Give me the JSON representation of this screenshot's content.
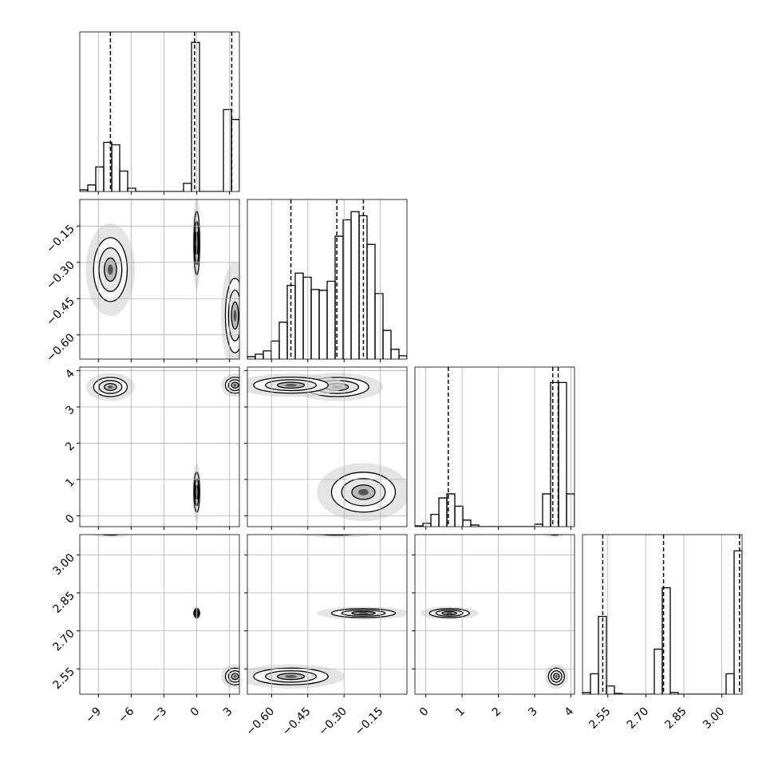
{
  "chart_data": {
    "type": "corner",
    "color": "#000000",
    "grid": true,
    "params": [
      {
        "lim": [
          -10.7,
          3.9
        ],
        "ticks": [
          {
            "value": -9,
            "label": "−9"
          },
          {
            "value": -6,
            "label": "−6"
          },
          {
            "value": -3,
            "label": "−3"
          },
          0,
          3
        ],
        "quantiles": [
          -7.9,
          -0.2,
          3.2
        ],
        "ylim": [
          0,
          190
        ],
        "bins": [
          -10.7,
          -9.97,
          -9.24,
          -8.51,
          -7.78,
          -7.05,
          -6.32,
          -5.59,
          -4.86,
          -4.13,
          -3.4,
          -2.67,
          -1.94,
          -1.21,
          -0.48,
          0.25,
          0.98,
          1.71,
          2.44,
          3.17,
          3.9
        ],
        "counts": [
          2,
          8,
          30,
          60,
          57,
          25,
          4,
          0,
          0,
          0,
          0,
          0,
          0,
          10,
          182,
          0,
          0,
          0,
          100,
          88
        ]
      },
      {
        "lim": [
          -0.7,
          -0.04
        ],
        "ticks": [
          {
            "value": -0.6,
            "label": "−0.60"
          },
          {
            "value": -0.45,
            "label": "−0.45"
          },
          {
            "value": -0.3,
            "label": "−0.30"
          },
          {
            "value": -0.15,
            "label": "−0.15"
          }
        ],
        "quantiles": [
          -0.52,
          -0.33,
          -0.22
        ],
        "ylim": [
          0,
          190
        ],
        "bins": [
          -0.7,
          -0.667,
          -0.634,
          -0.601,
          -0.568,
          -0.535,
          -0.502,
          -0.469,
          -0.436,
          -0.403,
          -0.37,
          -0.337,
          -0.304,
          -0.271,
          -0.238,
          -0.205,
          -0.172,
          -0.139,
          -0.106,
          -0.073,
          -0.04
        ],
        "counts": [
          3,
          6,
          10,
          22,
          45,
          90,
          105,
          100,
          85,
          84,
          95,
          150,
          170,
          180,
          175,
          140,
          80,
          35,
          12,
          4
        ]
      },
      {
        "lim": [
          -0.3,
          4.1
        ],
        "ticks": [
          0,
          1,
          2,
          3,
          4
        ],
        "quantiles": [
          0.62,
          3.5,
          3.65
        ],
        "ylim": [
          0,
          190
        ],
        "bins": [
          -0.3,
          -0.08,
          0.14,
          0.36,
          0.58,
          0.8,
          1.02,
          1.24,
          1.46,
          1.68,
          1.9,
          2.12,
          2.34,
          2.56,
          2.78,
          3.0,
          3.22,
          3.44,
          3.66,
          3.88,
          4.1
        ],
        "counts": [
          1,
          4,
          15,
          35,
          40,
          25,
          8,
          2,
          0,
          0,
          0,
          0,
          0,
          0,
          0,
          3,
          40,
          176,
          176,
          40
        ]
      },
      {
        "lim": [
          2.45,
          3.08
        ],
        "ticks": [
          2.55,
          {
            "value": 2.7,
            "label": "2.70"
          },
          2.85,
          {
            "value": 3,
            "label": "3.00"
          }
        ],
        "quantiles": [
          2.53,
          2.77,
          3.07
        ],
        "ylim": [
          0,
          190
        ],
        "bins": [
          2.45,
          2.4815,
          2.513,
          2.5445,
          2.576,
          2.6075,
          2.639,
          2.6705,
          2.702,
          2.7335,
          2.765,
          2.7965,
          2.828,
          2.8595,
          2.891,
          2.9225,
          2.954,
          2.9855,
          3.017,
          3.0485,
          3.08
        ],
        "counts": [
          2,
          25,
          95,
          10,
          1,
          0,
          0,
          0,
          0,
          55,
          130,
          2,
          0,
          0,
          0,
          0,
          0,
          0,
          25,
          175
        ]
      }
    ],
    "modes": [
      {
        "center": [
          -7.9,
          -0.33,
          3.55,
          3.1
        ],
        "sd": [
          0.7,
          0.06,
          0.12,
          0.01
        ]
      },
      {
        "center": [
          0,
          -0.22,
          0.65,
          2.77
        ],
        "sd": [
          0.12,
          0.06,
          0.25,
          0.008
        ]
      },
      {
        "center": [
          3.5,
          -0.52,
          3.6,
          2.52
        ],
        "sd": [
          0.4,
          0.07,
          0.1,
          0.015
        ]
      }
    ]
  }
}
